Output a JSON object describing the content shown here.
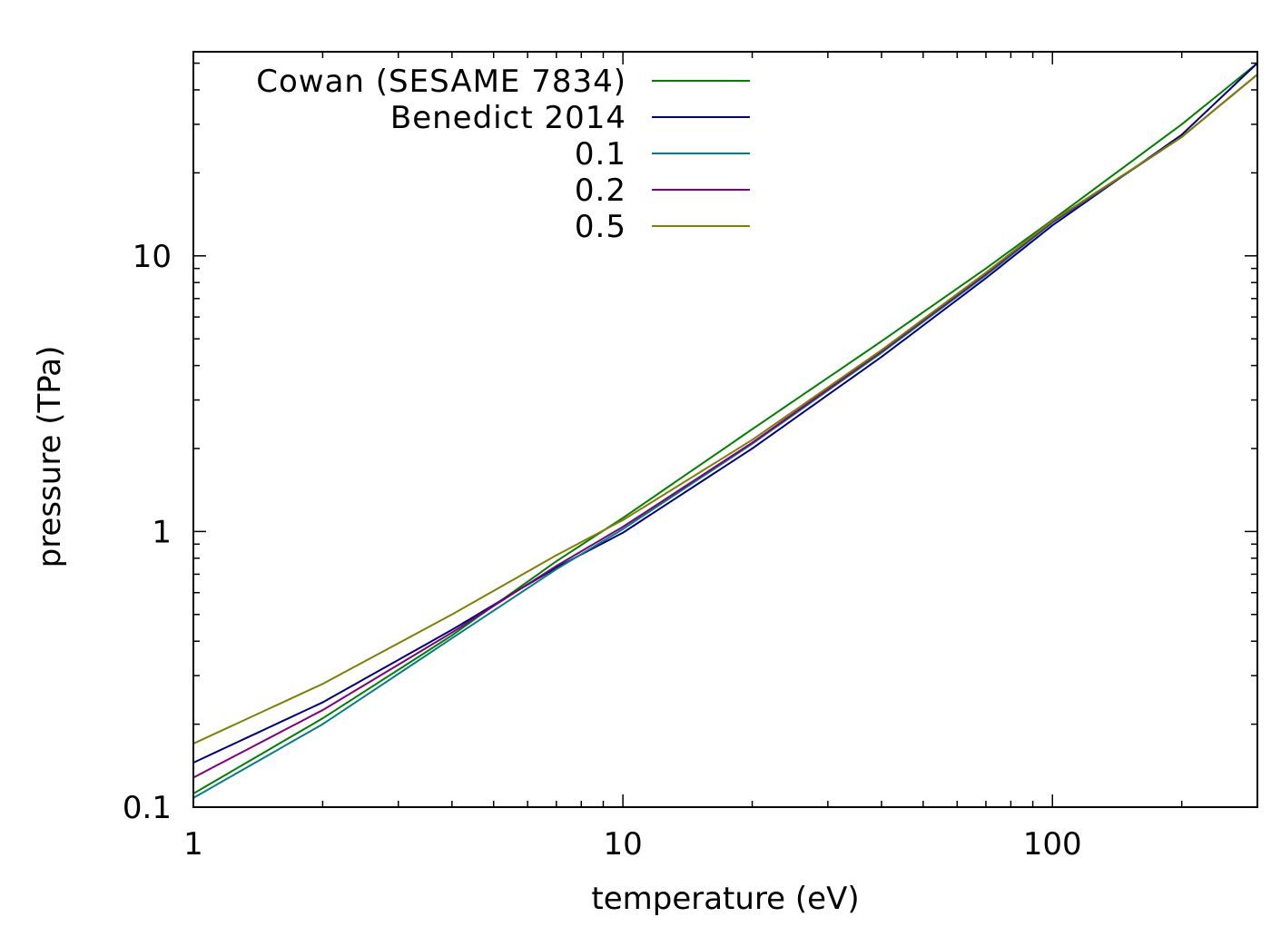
{
  "chart_data": {
    "type": "line",
    "xlabel": "temperature (eV)",
    "ylabel": "pressure (TPa)",
    "xscale": "log",
    "yscale": "log",
    "xlim": [
      1,
      300
    ],
    "ylim": [
      0.1,
      55
    ],
    "grid": false,
    "legend_position": "top-left",
    "x_tick_labels": [
      "1",
      "10",
      "100"
    ],
    "y_tick_labels": [
      "0.1",
      "1",
      "10"
    ],
    "x_ticks": [
      1,
      10,
      100
    ],
    "y_ticks": [
      0.1,
      1,
      10
    ],
    "series": [
      {
        "name": "Cowan (SESAME 7834)",
        "color": "#008000",
        "x": [
          1,
          2,
          4,
          7,
          10,
          20,
          40,
          70,
          100,
          200,
          300
        ],
        "y": [
          0.112,
          0.21,
          0.42,
          0.78,
          1.12,
          2.35,
          4.9,
          9.0,
          13.5,
          30,
          50
        ]
      },
      {
        "name": "Benedict 2014",
        "color": "#000080",
        "x": [
          1,
          2,
          4,
          7,
          10,
          20,
          40,
          70,
          100,
          200,
          300
        ],
        "y": [
          0.145,
          0.24,
          0.44,
          0.74,
          0.99,
          2.0,
          4.3,
          8.3,
          12.9,
          27.5,
          50
        ]
      },
      {
        "name": "0.1",
        "color": "#008080",
        "x": [
          1,
          2,
          4,
          7,
          10,
          20,
          40,
          70,
          100,
          200,
          300
        ],
        "y": [
          0.108,
          0.2,
          0.41,
          0.73,
          1.02,
          2.08,
          4.45,
          8.5,
          13.2,
          27,
          45.5
        ]
      },
      {
        "name": "0.2",
        "color": "#800080",
        "x": [
          1,
          2,
          4,
          7,
          10,
          20,
          40,
          70,
          100,
          200,
          300
        ],
        "y": [
          0.128,
          0.225,
          0.43,
          0.75,
          1.04,
          2.1,
          4.5,
          8.6,
          13.3,
          27,
          45.5
        ]
      },
      {
        "name": "0.5",
        "color": "#808000",
        "x": [
          1,
          2,
          4,
          7,
          10,
          20,
          40,
          70,
          100,
          200,
          300
        ],
        "y": [
          0.17,
          0.28,
          0.5,
          0.82,
          1.1,
          2.15,
          4.55,
          8.7,
          13.4,
          27,
          45.5
        ]
      }
    ]
  }
}
